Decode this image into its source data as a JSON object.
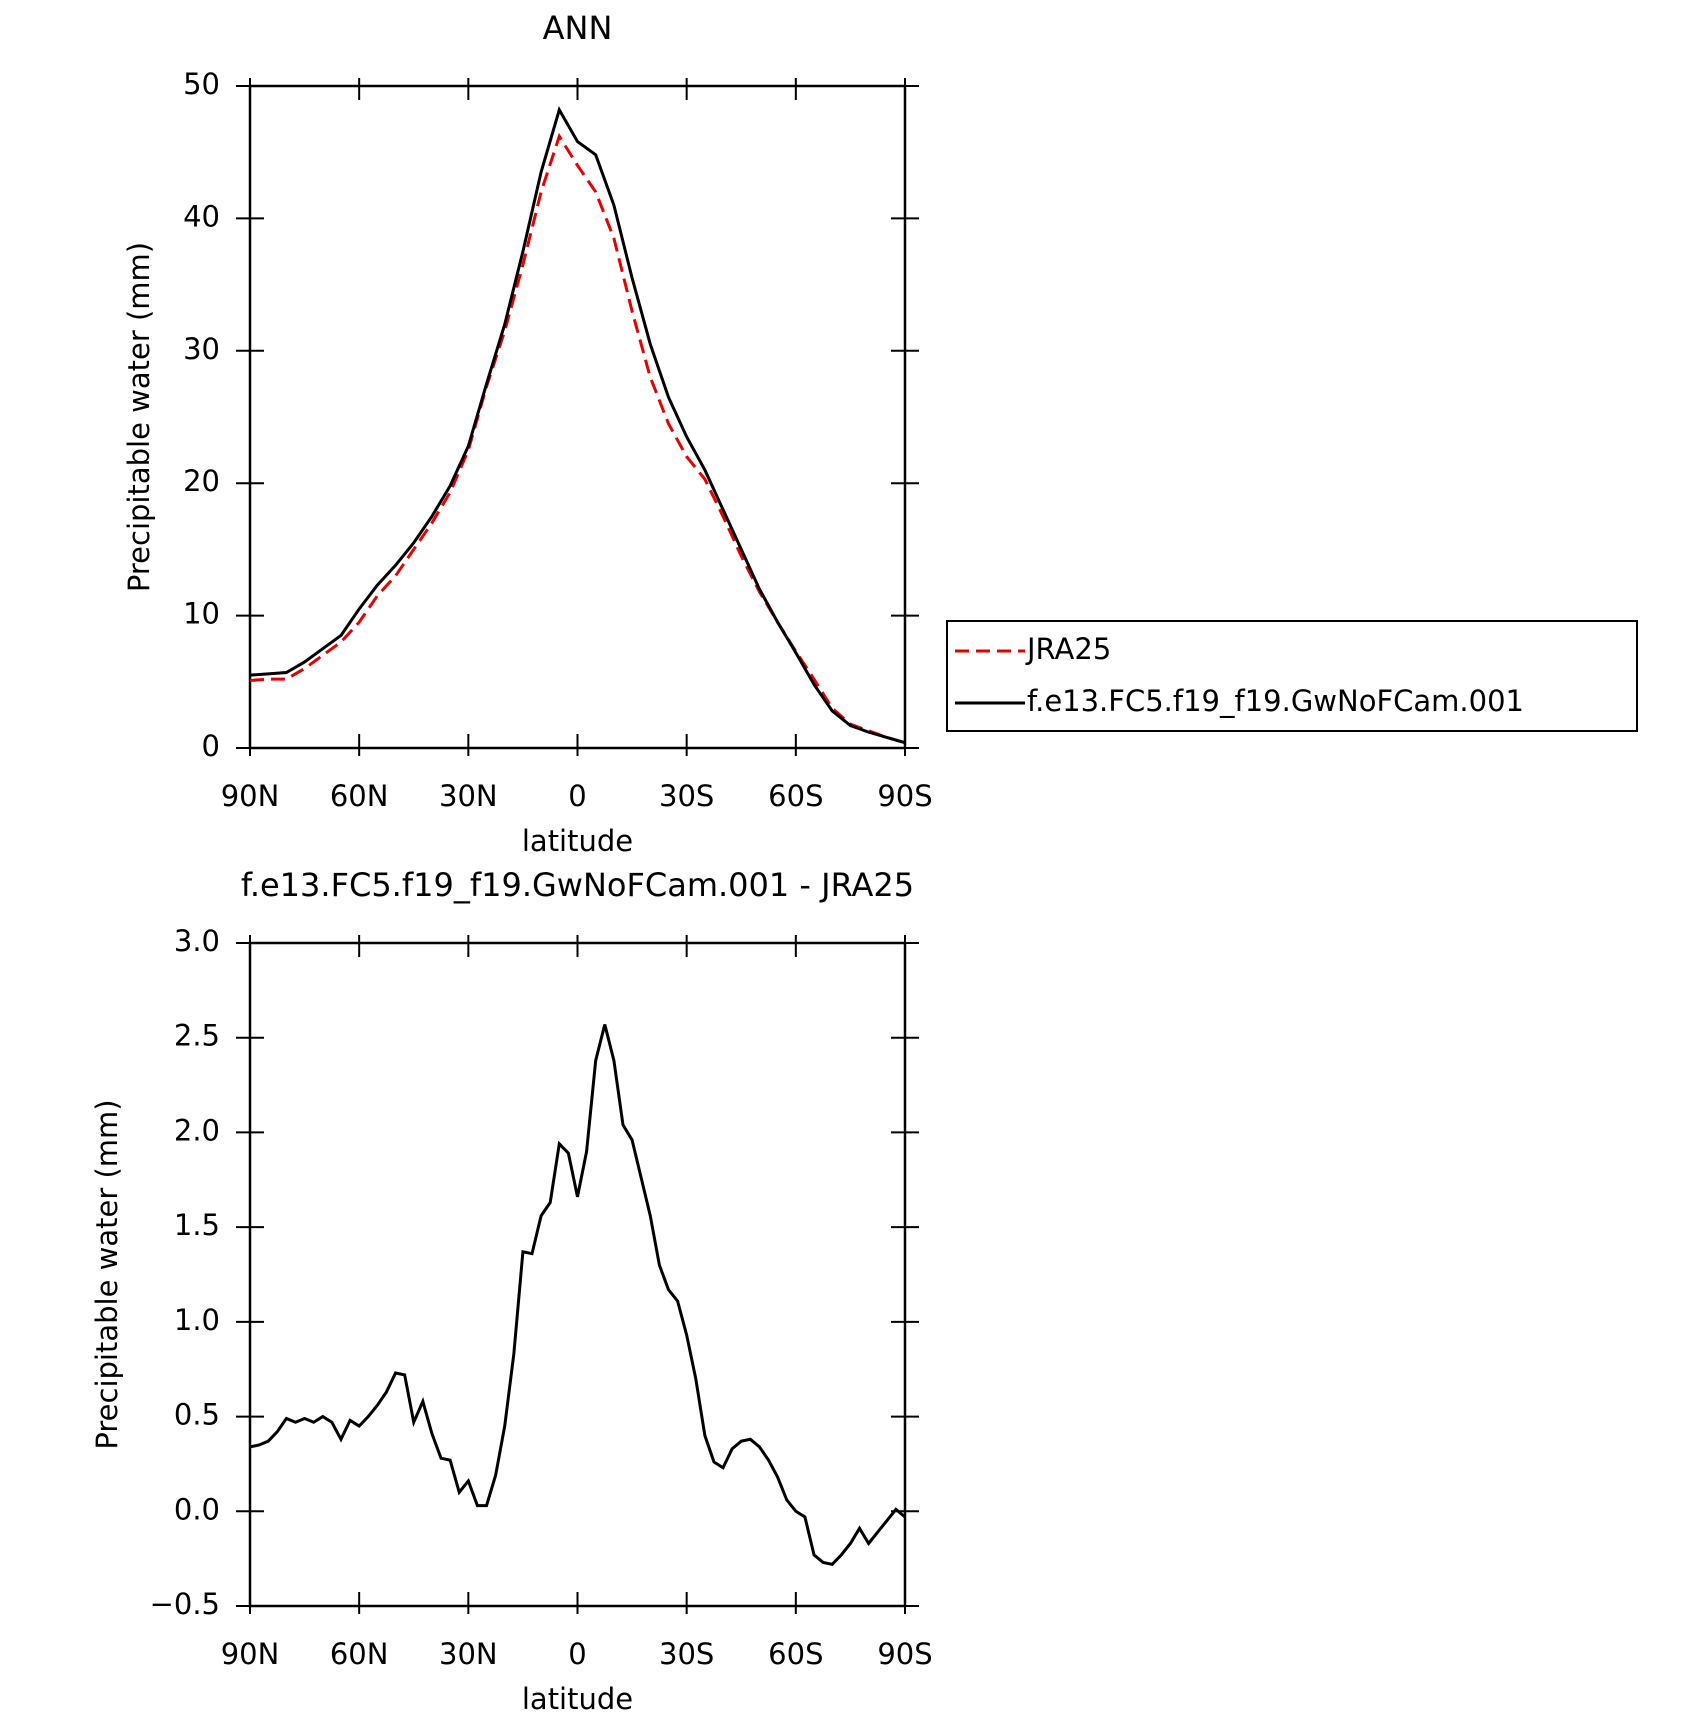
{
  "chart_data": [
    {
      "type": "line",
      "title": "ANN",
      "xlabel": "latitude",
      "ylabel": "Precipitable water (mm)",
      "x": [
        90,
        85,
        80,
        75,
        70,
        65,
        60,
        55,
        50,
        45,
        40,
        35,
        30,
        25,
        20,
        15,
        10,
        5,
        0,
        -5,
        -10,
        -15,
        -20,
        -25,
        -30,
        -35,
        -40,
        -45,
        -50,
        -55,
        -60,
        -65,
        -70,
        -75,
        -80,
        -85,
        -90
      ],
      "series": [
        {
          "name": "JRA25",
          "color": "#e00000",
          "style": "dashed",
          "values": [
            5.1,
            5.2,
            5.2,
            6.0,
            7.0,
            8.0,
            9.5,
            11.5,
            13.0,
            15.0,
            17.0,
            19.3,
            22.5,
            27.3,
            31.5,
            36.5,
            42.0,
            46.2,
            44.0,
            42.0,
            38.5,
            33.0,
            28.0,
            24.5,
            22.0,
            20.3,
            17.5,
            14.5,
            11.8,
            9.5,
            7.3,
            5.2,
            3.0,
            1.8,
            1.3,
            0.8,
            0.4
          ]
        },
        {
          "name": "f.e13.FC5.f19_f19.GwNoFCam.001",
          "color": "#000000",
          "style": "solid",
          "values": [
            5.5,
            5.6,
            5.7,
            6.5,
            7.5,
            8.5,
            10.5,
            12.3,
            13.8,
            15.5,
            17.5,
            19.8,
            22.8,
            27.5,
            32.0,
            37.5,
            43.5,
            48.2,
            45.8,
            44.8,
            41.0,
            35.5,
            30.5,
            26.5,
            23.5,
            21.0,
            18.0,
            15.0,
            12.0,
            9.5,
            7.2,
            4.8,
            2.8,
            1.7,
            1.2,
            0.8,
            0.4
          ]
        }
      ],
      "xlim": [
        90,
        -90
      ],
      "xticks": [
        {
          "value": 90,
          "label": "90N"
        },
        {
          "value": 60,
          "label": "60N"
        },
        {
          "value": 30,
          "label": "30N"
        },
        0,
        {
          "value": -30,
          "label": "30S"
        },
        {
          "value": -60,
          "label": "60S"
        },
        {
          "value": -90,
          "label": "90S"
        }
      ],
      "ylim": [
        0,
        50
      ],
      "yticks": [
        0,
        10,
        20,
        30,
        40,
        50
      ],
      "legend": "right"
    },
    {
      "type": "line",
      "title": "f.e13.FC5.f19_f19.GwNoFCam.001 - JRA25",
      "xlabel": "latitude",
      "ylabel": "Precipitable water (mm)",
      "x": [
        90,
        87.5,
        85,
        82.5,
        80,
        77.5,
        75,
        72.5,
        70,
        67.5,
        65,
        62.5,
        60,
        57.5,
        55,
        52.5,
        50,
        47.5,
        45,
        42.5,
        40,
        37.5,
        35,
        32.5,
        30,
        27.5,
        25,
        22.5,
        20,
        17.5,
        15,
        12.5,
        10,
        7.5,
        5,
        2.5,
        0,
        -2.5,
        -5,
        -7.5,
        -10,
        -12.5,
        -15,
        -17.5,
        -20,
        -22.5,
        -25,
        -27.5,
        -30,
        -32.5,
        -35,
        -37.5,
        -40,
        -42.5,
        -45,
        -47.5,
        -50,
        -52.5,
        -55,
        -57.5,
        -60,
        -62.5,
        -65,
        -67.5,
        -70,
        -72.5,
        -75,
        -77.5,
        -80,
        -82.5,
        -85,
        -87.5,
        -90
      ],
      "series": [
        {
          "color": "#000000",
          "style": "solid",
          "values": [
            0.34,
            0.35,
            0.37,
            0.42,
            0.49,
            0.47,
            0.49,
            0.47,
            0.5,
            0.47,
            0.38,
            0.48,
            0.45,
            0.5,
            0.56,
            0.63,
            0.73,
            0.72,
            0.47,
            0.58,
            0.41,
            0.28,
            0.27,
            0.1,
            0.16,
            0.03,
            0.03,
            0.19,
            0.45,
            0.83,
            1.37,
            1.36,
            1.56,
            1.63,
            1.94,
            1.89,
            1.66,
            1.9,
            2.38,
            2.57,
            2.38,
            2.04,
            1.96,
            1.76,
            1.56,
            1.3,
            1.17,
            1.11,
            0.93,
            0.7,
            0.4,
            0.26,
            0.23,
            0.33,
            0.37,
            0.38,
            0.34,
            0.27,
            0.18,
            0.06,
            0.0,
            -0.03,
            -0.23,
            -0.27,
            -0.28,
            -0.23,
            -0.17,
            -0.09,
            -0.17,
            -0.11,
            -0.05,
            0.01,
            -0.03
          ]
        }
      ],
      "xlim": [
        90,
        -90
      ],
      "xticks": [
        {
          "value": 90,
          "label": "90N"
        },
        {
          "value": 60,
          "label": "60N"
        },
        {
          "value": 30,
          "label": "30N"
        },
        0,
        {
          "value": -30,
          "label": "30S"
        },
        {
          "value": -60,
          "label": "60S"
        },
        {
          "value": -90,
          "label": "90S"
        }
      ],
      "ylim": [
        -0.5,
        3.0
      ],
      "yticks": [
        {
          "value": -0.5,
          "label": "−0.5"
        },
        {
          "value": 0,
          "label": "0.0"
        },
        0.5,
        {
          "value": 1,
          "label": "1.0"
        },
        1.5,
        {
          "value": 2,
          "label": "2.0"
        },
        2.5,
        {
          "value": 3,
          "label": "3.0"
        }
      ]
    }
  ]
}
